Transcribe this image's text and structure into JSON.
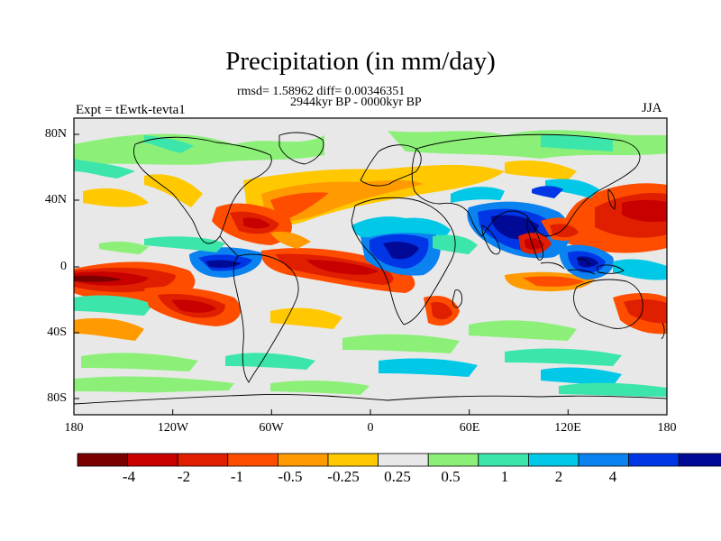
{
  "title": "Precipitation (in mm/day)",
  "stats": "rmsd= 1.58962 diff= 0.00346351",
  "period": "2944kyr BP - 0000kyr BP",
  "experiment": "Expt = tEwtk-tevta1",
  "season": "JJA",
  "lat_labels": [
    "80N",
    "40N",
    "0",
    "40S",
    "80S"
  ],
  "lon_labels": [
    "180",
    "120W",
    "60W",
    "0",
    "60E",
    "120E",
    "180"
  ],
  "colorbar": {
    "labels": [
      "-4",
      "-2",
      "-1",
      "-0.5",
      "-0.25",
      "0.25",
      "0.5",
      "1",
      "2",
      "4"
    ],
    "colors": [
      "#7a0000",
      "#c80000",
      "#e01e00",
      "#ff4d00",
      "#ff9a00",
      "#ffc800",
      "#e8e8e8",
      "#8cf078",
      "#3ce6aa",
      "#00c8e6",
      "#0a82f0",
      "#0036e6",
      "#000a96"
    ]
  }
}
